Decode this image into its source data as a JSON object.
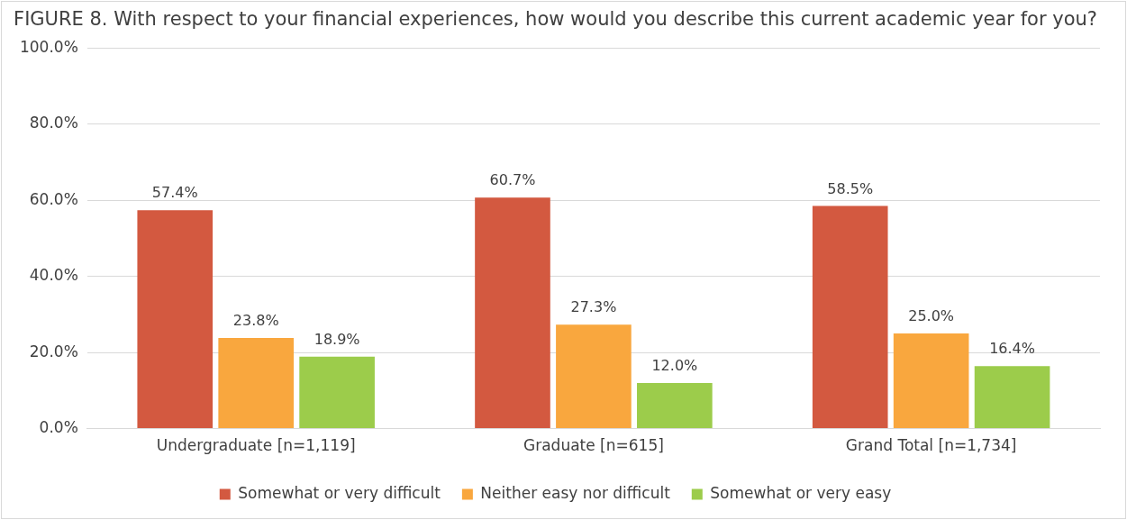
{
  "chart_data": {
    "type": "bar",
    "title": "FIGURE 8. With respect to your financial experiences, how would you describe this current academic year for you?",
    "categories": [
      "Undergraduate [n=1,119]",
      "Graduate [n=615]",
      "Grand Total [n=1,734]"
    ],
    "series": [
      {
        "name": "Somewhat or very difficult",
        "color": "#d35940",
        "values": [
          57.4,
          60.7,
          58.5
        ],
        "value_labels": [
          "57.4%",
          "60.7%",
          "58.5%"
        ]
      },
      {
        "name": "Neither easy nor difficult",
        "color": "#f9a73e",
        "values": [
          23.8,
          27.3,
          25.0
        ],
        "value_labels": [
          "23.8%",
          "27.3%",
          "25.0%"
        ]
      },
      {
        "name": "Somewhat or very easy",
        "color": "#9ccc4b",
        "values": [
          18.9,
          12.0,
          16.4
        ],
        "value_labels": [
          "18.9%",
          "12.0%",
          "16.4%"
        ]
      }
    ],
    "ylim": [
      0,
      100
    ],
    "yticks": [
      {
        "value": 0,
        "label": "0.0%"
      },
      {
        "value": 20,
        "label": "20.0%"
      },
      {
        "value": 40,
        "label": "40.0%"
      },
      {
        "value": 60,
        "label": "60.0%"
      },
      {
        "value": 80,
        "label": "80.0%"
      },
      {
        "value": 100,
        "label": "100.0%"
      }
    ],
    "grid": "y",
    "legend": "bottom"
  }
}
